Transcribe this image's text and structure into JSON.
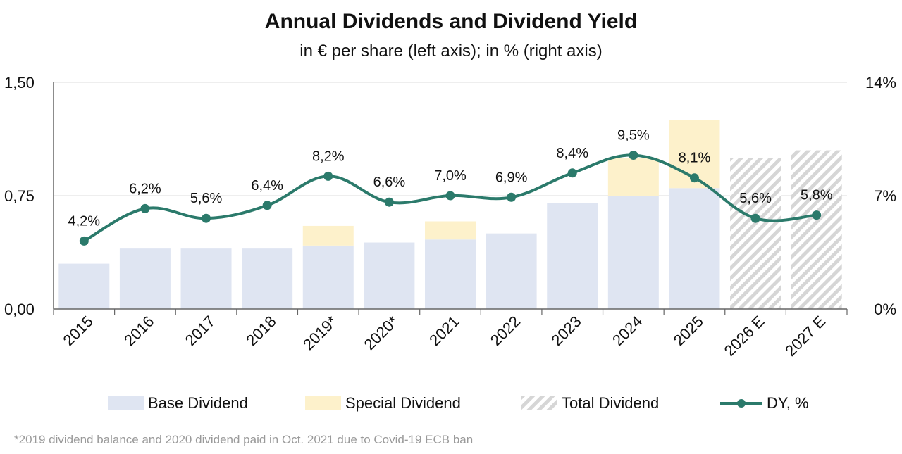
{
  "chart_data": {
    "type": "bar",
    "title": "Annual Dividends and Dividend Yield",
    "subtitle": "in € per share (left axis); in % (right axis)",
    "categories": [
      "2015",
      "2016",
      "2017",
      "2018",
      "2019*",
      "2020*",
      "2021",
      "2022",
      "2023",
      "2024",
      "2025",
      "2026 E",
      "2027 E"
    ],
    "series": [
      {
        "name": "Base Dividend",
        "kind": "bar-stacked",
        "color": "#dfe5f2",
        "values": [
          0.3,
          0.4,
          0.4,
          0.4,
          0.42,
          0.44,
          0.46,
          0.5,
          0.7,
          0.75,
          0.8,
          null,
          null
        ]
      },
      {
        "name": "Special Dividend",
        "kind": "bar-stacked",
        "color": "#fdf1cb",
        "values": [
          0,
          0,
          0,
          0,
          0.13,
          0,
          0.12,
          0,
          0,
          0.25,
          0.45,
          null,
          null
        ]
      },
      {
        "name": "Total Dividend",
        "kind": "bar-hatched",
        "color": "#d9d9d9",
        "values": [
          null,
          null,
          null,
          null,
          null,
          null,
          null,
          null,
          null,
          null,
          null,
          1.0,
          1.05
        ]
      },
      {
        "name": "DY, %",
        "kind": "line",
        "axis": "right",
        "color": "#2b7a6b",
        "values": [
          4.2,
          6.2,
          5.6,
          6.4,
          8.2,
          6.6,
          7.0,
          6.9,
          8.4,
          9.5,
          8.1,
          5.6,
          5.8
        ],
        "labels": [
          "4,2%",
          "6,2%",
          "5,6%",
          "6,4%",
          "8,2%",
          "6,6%",
          "7,0%",
          "6,9%",
          "8,4%",
          "9,5%",
          "8,1%",
          "5,6%",
          "5,8%"
        ]
      }
    ],
    "y_left": {
      "range": [
        0,
        1.5
      ],
      "ticks": [
        0,
        0.75,
        1.5
      ],
      "tick_labels": [
        "0,00",
        "0,75",
        "1,50"
      ]
    },
    "y_right": {
      "range": [
        0,
        14
      ],
      "ticks": [
        0,
        7,
        14
      ],
      "tick_labels": [
        "0%",
        "7%",
        "14%"
      ]
    },
    "grid": true,
    "legend_position": "bottom",
    "footnote": "*2019 dividend balance and 2020 dividend paid in Oct. 2021 due to Covid-19 ECB ban"
  }
}
